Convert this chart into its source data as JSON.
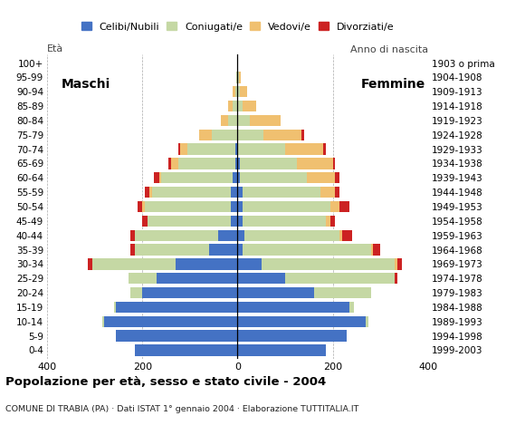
{
  "age_groups": [
    "0-4",
    "5-9",
    "10-14",
    "15-19",
    "20-24",
    "25-29",
    "30-34",
    "35-39",
    "40-44",
    "45-49",
    "50-54",
    "55-59",
    "60-64",
    "65-69",
    "70-74",
    "75-79",
    "80-84",
    "85-89",
    "90-94",
    "95-99",
    "100+"
  ],
  "birth_years": [
    "1999-2003",
    "1994-1998",
    "1989-1993",
    "1984-1988",
    "1979-1983",
    "1974-1978",
    "1969-1973",
    "1964-1968",
    "1959-1963",
    "1954-1958",
    "1949-1953",
    "1944-1948",
    "1939-1943",
    "1934-1938",
    "1929-1933",
    "1924-1928",
    "1919-1923",
    "1914-1918",
    "1909-1913",
    "1904-1908",
    "1903 o prima"
  ],
  "male": {
    "celibe": [
      215,
      255,
      280,
      255,
      200,
      170,
      130,
      60,
      40,
      15,
      15,
      15,
      10,
      5,
      5,
      0,
      0,
      0,
      0,
      0,
      0
    ],
    "coniugato": [
      0,
      0,
      5,
      5,
      25,
      60,
      175,
      155,
      175,
      175,
      180,
      165,
      150,
      120,
      100,
      55,
      20,
      10,
      5,
      2,
      0
    ],
    "vedovo": [
      0,
      0,
      0,
      0,
      0,
      0,
      0,
      0,
      0,
      0,
      5,
      5,
      5,
      15,
      15,
      25,
      15,
      10,
      5,
      0,
      0
    ],
    "divorziato": [
      0,
      0,
      0,
      0,
      0,
      0,
      10,
      10,
      10,
      10,
      10,
      10,
      10,
      5,
      5,
      0,
      0,
      0,
      0,
      0,
      0
    ]
  },
  "female": {
    "nubile": [
      185,
      230,
      270,
      235,
      160,
      100,
      50,
      10,
      15,
      10,
      10,
      10,
      5,
      5,
      0,
      0,
      0,
      0,
      0,
      0,
      0
    ],
    "coniugata": [
      0,
      0,
      5,
      10,
      120,
      230,
      280,
      270,
      200,
      175,
      185,
      165,
      140,
      120,
      100,
      55,
      25,
      10,
      5,
      2,
      0
    ],
    "vedova": [
      0,
      0,
      0,
      0,
      0,
      0,
      5,
      5,
      5,
      10,
      20,
      30,
      60,
      75,
      80,
      80,
      65,
      30,
      15,
      5,
      0
    ],
    "divorziata": [
      0,
      0,
      0,
      0,
      0,
      5,
      10,
      15,
      20,
      10,
      20,
      10,
      10,
      5,
      5,
      5,
      0,
      0,
      0,
      0,
      0
    ]
  },
  "colors": {
    "celibe": "#4472c4",
    "coniugato": "#c5d8a4",
    "vedovo": "#f0c070",
    "divorziato": "#cc2222"
  },
  "xlim": 400,
  "title": "Popolazione per età, sesso e stato civile - 2004",
  "subtitle": "COMUNE DI TRABIA (PA) · Dati ISTAT 1° gennaio 2004 · Elaborazione TUTTITALIA.IT",
  "legend_labels": [
    "Celibi/Nubili",
    "Coniugati/e",
    "Vedovi/e",
    "Divorziati/e"
  ],
  "background_color": "#ffffff",
  "maschi_label": "Maschi",
  "femmine_label": "Femmine",
  "eta_label": "Età",
  "anno_label": "Anno di nascita"
}
